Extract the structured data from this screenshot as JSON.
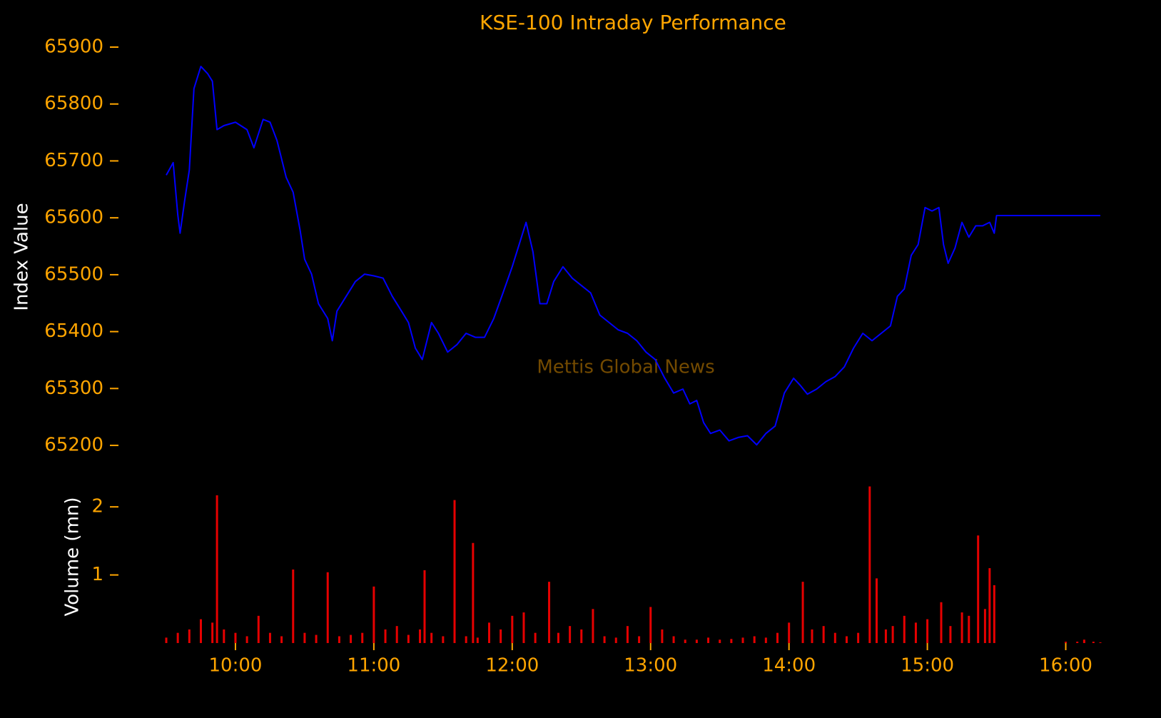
{
  "chart_data": [
    {
      "type": "line",
      "title": "KSE-100 Intraday Performance",
      "ylabel": "Index Value",
      "annotation": "Mettis Global News",
      "color": "#0000ff",
      "xlim": [
        "09:30",
        "16:15"
      ],
      "ylim": [
        65180,
        65900
      ],
      "yticks": [
        65200,
        65300,
        65400,
        65500,
        65600,
        65700,
        65800,
        65900
      ],
      "x": [
        "09:30",
        "09:33",
        "09:35",
        "09:36",
        "09:38",
        "09:40",
        "09:42",
        "09:45",
        "09:48",
        "09:50",
        "09:52",
        "09:55",
        "10:00",
        "10:05",
        "10:08",
        "10:12",
        "10:15",
        "10:18",
        "10:22",
        "10:25",
        "10:28",
        "10:30",
        "10:33",
        "10:36",
        "10:40",
        "10:42",
        "10:44",
        "10:48",
        "10:52",
        "10:56",
        "11:00",
        "11:04",
        "11:08",
        "11:12",
        "11:15",
        "11:18",
        "11:21",
        "11:25",
        "11:28",
        "11:32",
        "11:36",
        "11:40",
        "11:44",
        "11:48",
        "11:52",
        "11:56",
        "12:00",
        "12:04",
        "12:06",
        "12:09",
        "12:12",
        "12:15",
        "12:18",
        "12:22",
        "12:26",
        "12:30",
        "12:34",
        "12:38",
        "12:42",
        "12:46",
        "12:50",
        "12:54",
        "12:58",
        "13:02",
        "13:06",
        "13:10",
        "13:14",
        "13:17",
        "13:20",
        "13:23",
        "13:26",
        "13:30",
        "13:34",
        "13:38",
        "13:42",
        "13:46",
        "13:50",
        "13:54",
        "13:58",
        "14:02",
        "14:05",
        "14:08",
        "14:12",
        "14:16",
        "14:20",
        "14:24",
        "14:28",
        "14:32",
        "14:36",
        "14:40",
        "14:44",
        "14:47",
        "14:50",
        "14:53",
        "14:56",
        "14:59",
        "15:02",
        "15:05",
        "15:07",
        "15:09",
        "15:12",
        "15:15",
        "15:18",
        "15:21",
        "15:24",
        "15:27",
        "15:29",
        "15:30",
        "16:15"
      ],
      "values": [
        65675,
        65697,
        65605,
        65573,
        65631,
        65684,
        65827,
        65866,
        65853,
        65840,
        65755,
        65762,
        65768,
        65755,
        65723,
        65773,
        65768,
        65736,
        65671,
        65645,
        65579,
        65527,
        65501,
        65449,
        65423,
        65384,
        65436,
        65462,
        65488,
        65501,
        65498,
        65494,
        65462,
        65436,
        65416,
        65371,
        65351,
        65416,
        65397,
        65364,
        65377,
        65397,
        65390,
        65390,
        65423,
        65468,
        65514,
        65566,
        65592,
        65540,
        65449,
        65449,
        65488,
        65514,
        65494,
        65481,
        65468,
        65429,
        65416,
        65403,
        65397,
        65384,
        65364,
        65351,
        65319,
        65292,
        65299,
        65273,
        65279,
        65240,
        65221,
        65227,
        65208,
        65214,
        65217,
        65201,
        65221,
        65234,
        65292,
        65318,
        65305,
        65290,
        65299,
        65312,
        65321,
        65338,
        65371,
        65397,
        65384,
        65397,
        65410,
        65462,
        65475,
        65534,
        65553,
        65618,
        65612,
        65618,
        65553,
        65520,
        65547,
        65592,
        65566,
        65586,
        65586,
        65592,
        65573,
        65604,
        65604
      ]
    },
    {
      "type": "bar",
      "ylabel": "Volume (mn)",
      "color": "#e60000",
      "xlim": [
        "09:30",
        "16:15"
      ],
      "ylim": [
        0,
        2.4
      ],
      "yticks": [
        1,
        2
      ],
      "xticks": [
        "10:00",
        "11:00",
        "12:00",
        "13:00",
        "14:00",
        "15:00",
        "16:00"
      ],
      "x": [
        "09:30",
        "09:35",
        "09:40",
        "09:45",
        "09:50",
        "09:52",
        "09:55",
        "10:00",
        "10:05",
        "10:10",
        "10:15",
        "10:20",
        "10:25",
        "10:30",
        "10:35",
        "10:40",
        "10:45",
        "10:50",
        "10:55",
        "11:00",
        "11:05",
        "11:10",
        "11:15",
        "11:20",
        "11:22",
        "11:25",
        "11:30",
        "11:35",
        "11:40",
        "11:43",
        "11:45",
        "11:50",
        "11:55",
        "12:00",
        "12:05",
        "12:10",
        "12:16",
        "12:20",
        "12:25",
        "12:30",
        "12:35",
        "12:40",
        "12:45",
        "12:50",
        "12:55",
        "13:00",
        "13:05",
        "13:10",
        "13:15",
        "13:20",
        "13:25",
        "13:30",
        "13:35",
        "13:40",
        "13:45",
        "13:50",
        "13:55",
        "14:00",
        "14:06",
        "14:10",
        "14:15",
        "14:20",
        "14:25",
        "14:30",
        "14:35",
        "14:38",
        "14:42",
        "14:45",
        "14:50",
        "14:55",
        "15:00",
        "15:06",
        "15:10",
        "15:15",
        "15:18",
        "15:22",
        "15:25",
        "15:27",
        "15:29",
        "16:00",
        "16:05",
        "16:08",
        "16:12",
        "16:15"
      ],
      "values": [
        0.08,
        0.15,
        0.2,
        0.35,
        0.3,
        2.17,
        0.2,
        0.15,
        0.1,
        0.4,
        0.15,
        0.1,
        1.08,
        0.15,
        0.12,
        1.04,
        0.1,
        0.12,
        0.15,
        0.83,
        0.2,
        0.25,
        0.12,
        0.2,
        1.07,
        0.15,
        0.1,
        2.1,
        0.1,
        1.47,
        0.08,
        0.3,
        0.2,
        0.4,
        0.45,
        0.15,
        0.9,
        0.15,
        0.25,
        0.2,
        0.5,
        0.1,
        0.08,
        0.25,
        0.1,
        0.53,
        0.2,
        0.1,
        0.05,
        0.05,
        0.08,
        0.05,
        0.06,
        0.08,
        0.1,
        0.08,
        0.15,
        0.3,
        0.9,
        0.2,
        0.25,
        0.15,
        0.1,
        0.15,
        2.3,
        0.95,
        0.2,
        0.25,
        0.4,
        0.3,
        0.35,
        0.6,
        0.25,
        0.45,
        0.4,
        1.58,
        0.5,
        1.1,
        0.85,
        0.02,
        0.02,
        0.05,
        0.02,
        0.01
      ]
    }
  ]
}
